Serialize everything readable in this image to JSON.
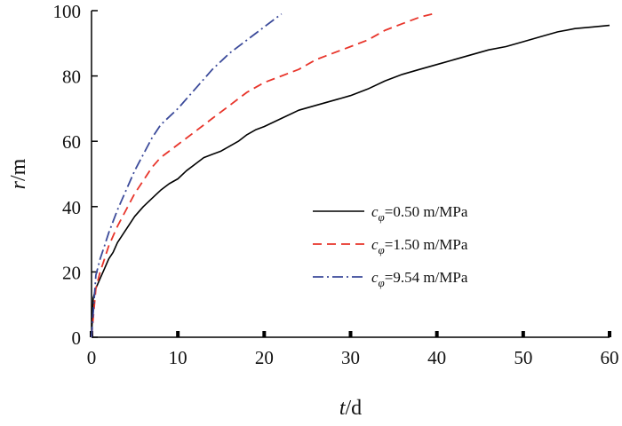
{
  "chart_data": {
    "type": "line",
    "title": "",
    "xlabel": {
      "var": "t",
      "unit": "d"
    },
    "ylabel": {
      "var": "r",
      "unit": "m"
    },
    "xlim": [
      0,
      60
    ],
    "ylim": [
      0,
      100
    ],
    "xticks": [
      0,
      10,
      20,
      30,
      40,
      50,
      60
    ],
    "yticks": [
      0,
      20,
      40,
      60,
      80,
      100
    ],
    "grid": false,
    "legend_position": "center-right",
    "series": [
      {
        "name": "c_phi=0.50 m/MPa",
        "legend": {
          "symbol": "c",
          "subscript": "φ",
          "rest": "=0.50 m/MPa"
        },
        "color": "#000000",
        "dash": "solid",
        "x": [
          0,
          0.2,
          0.5,
          1,
          1.5,
          2,
          2.5,
          3,
          4,
          5,
          6,
          7,
          8,
          9,
          10,
          11,
          12,
          13,
          14,
          15,
          16,
          17,
          18,
          19,
          20,
          22,
          24,
          26,
          28,
          30,
          32,
          34,
          36,
          38,
          40,
          42,
          44,
          46,
          48,
          50,
          52,
          54,
          56,
          58,
          60
        ],
        "y": [
          0,
          12,
          15,
          18,
          21,
          24,
          26,
          29,
          33,
          37,
          40,
          42.5,
          45,
          47,
          48.5,
          51,
          53,
          55,
          56,
          57,
          58.5,
          60,
          62,
          63.5,
          64.5,
          67,
          69.5,
          71,
          72.5,
          74,
          76,
          78.5,
          80.5,
          82,
          83.5,
          85,
          86.5,
          88,
          89,
          90.5,
          92,
          93.5,
          94.5,
          95,
          95.5
        ]
      },
      {
        "name": "c_phi=1.50 m/MPa",
        "legend": {
          "symbol": "c",
          "subscript": "φ",
          "rest": "=1.50 m/MPa"
        },
        "color": "#e8352b",
        "dash": "10,6",
        "x": [
          0,
          0.5,
          1,
          1.5,
          2,
          3,
          4,
          5,
          6,
          7,
          8,
          10,
          12,
          14,
          16,
          18,
          20,
          22,
          24,
          26,
          28,
          30,
          32,
          34,
          36,
          38,
          39.5
        ],
        "y": [
          0,
          15,
          20,
          24,
          28,
          34,
          39,
          44,
          48,
          52,
          55,
          59,
          63,
          67,
          71,
          75,
          78,
          80,
          82,
          85,
          87,
          89,
          91,
          94,
          96,
          98,
          99
        ]
      },
      {
        "name": "c_phi=9.54 m/MPa",
        "legend": {
          "symbol": "c",
          "subscript": "φ",
          "rest": "=9.54 m/MPa"
        },
        "color": "#3b4a9a",
        "dash": "12,4,2,4",
        "x": [
          0,
          0.5,
          1,
          1.5,
          2,
          3,
          4,
          5,
          6,
          7,
          8,
          10,
          12,
          14,
          16,
          18,
          20,
          22
        ],
        "y": [
          0,
          19,
          24,
          28,
          32,
          39,
          45,
          51,
          56,
          61,
          65,
          70,
          76,
          82,
          87,
          91,
          95,
          99
        ]
      }
    ]
  }
}
